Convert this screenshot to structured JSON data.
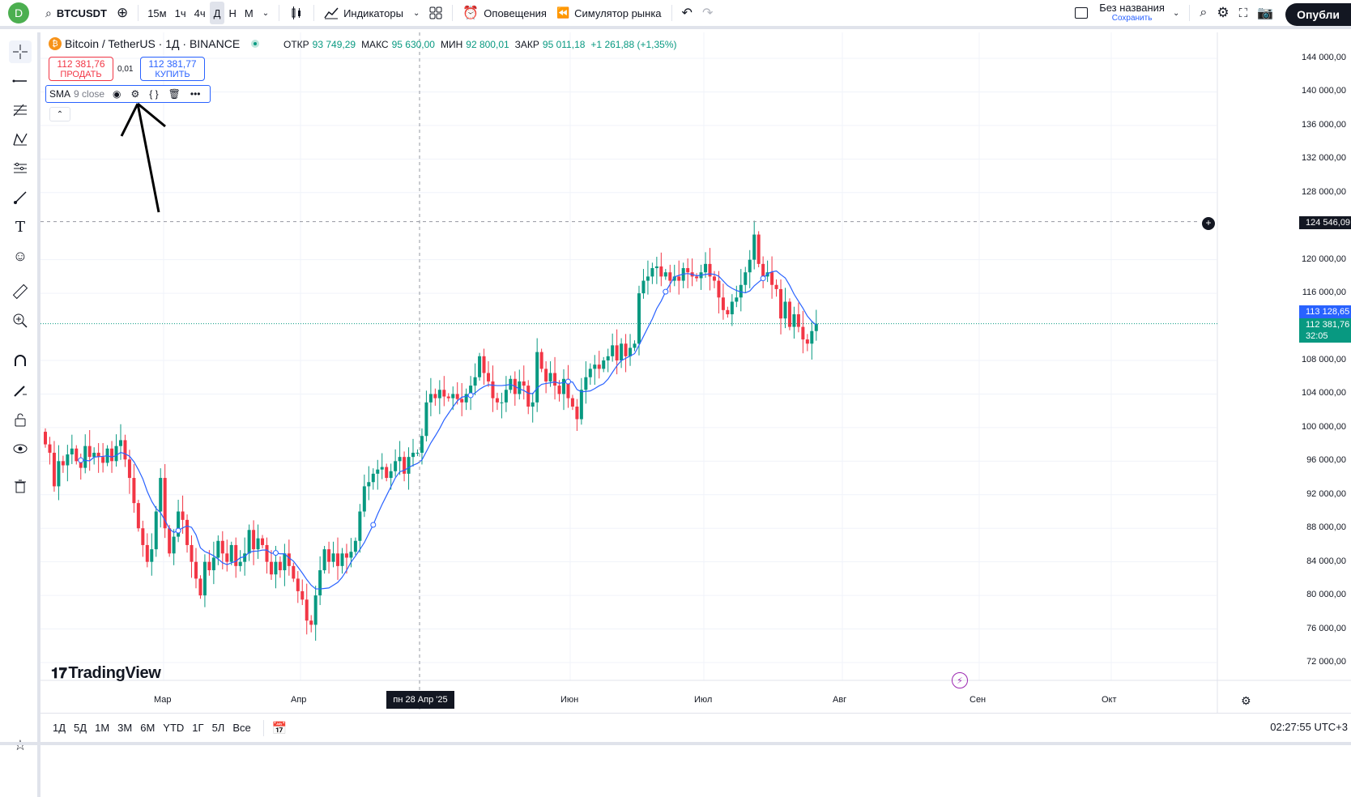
{
  "toolbar": {
    "avatar_letter": "D",
    "symbol": "BTCUSDT",
    "intervals": [
      "15м",
      "1ч",
      "4ч",
      "Д",
      "Н",
      "М"
    ],
    "active_interval": "Д",
    "indicators_label": "Индикаторы",
    "alerts_label": "Оповещения",
    "replay_label": "Симулятор рынка",
    "layout_name": "Без названия",
    "layout_save": "Сохранить",
    "publish_label": "Опубли"
  },
  "legend": {
    "title": "Bitcoin / TetherUS · 1Д · BINANCE",
    "open_label": "ОТКР",
    "open": "93 749,29",
    "high_label": "МАКС",
    "high": "95 630,00",
    "low_label": "МИН",
    "low": "92 800,01",
    "close_label": "ЗАКР",
    "close": "95 011,18",
    "change": "+1 261,88 (+1,35%)"
  },
  "trade": {
    "sell_price": "112 381,76",
    "sell_label": "ПРОДАТЬ",
    "spread": "0,01",
    "buy_price": "112 381,77",
    "buy_label": "КУПИТЬ"
  },
  "indicator": {
    "name": "SMA",
    "params": "9 close"
  },
  "price_axis": {
    "labels": [
      "144 000,00",
      "140 000,00",
      "136 000,00",
      "132 000,00",
      "128 000,00",
      "120 000,00",
      "116 000,00",
      "108 000,00",
      "104 000,00",
      "100 000,00",
      "96 000,00",
      "92 000,00",
      "88 000,00",
      "84 000,00",
      "80 000,00",
      "76 000,00",
      "72 000,00"
    ],
    "crosshair_price": "124 546,09",
    "sma_price": "113 128,65",
    "last_price": "112 381,76",
    "countdown": "32:05"
  },
  "time_axis": {
    "labels": [
      "Мар",
      "Апр",
      "Июн",
      "Июл",
      "Авг",
      "Сен",
      "Окт"
    ],
    "crosshair_date": "пн 28 Апр '25"
  },
  "bottom": {
    "ranges": [
      "1Д",
      "5Д",
      "1М",
      "3М",
      "6М",
      "YTD",
      "1Г",
      "5Л",
      "Все"
    ],
    "clock": "02:27:55 UTC+3"
  },
  "logo_text": "TradingView",
  "colors": {
    "up": "#089981",
    "down": "#f23645",
    "sma": "#2962ff",
    "accent": "#2962ff"
  },
  "chart_data": {
    "type": "candlestick",
    "symbol": "BTCUSDT",
    "interval": "1D",
    "ylim": [
      70000,
      146000
    ],
    "sma_period": 9,
    "closes": [
      98000,
      97000,
      93000,
      96000,
      95500,
      96800,
      97500,
      96000,
      95200,
      97800,
      96500,
      97000,
      96500,
      95800,
      97500,
      96000,
      97800,
      98500,
      96200,
      94000,
      91000,
      88000,
      86000,
      84000,
      85500,
      90000,
      94000,
      88000,
      85000,
      87000,
      90000,
      89000,
      86000,
      84000,
      82000,
      80000,
      84000,
      83000,
      84500,
      86500,
      85000,
      84000,
      86000,
      83500,
      84000,
      85000,
      87800,
      85500,
      86800,
      86000,
      84000,
      82500,
      84000,
      83000,
      85000,
      83500,
      82000,
      80500,
      79500,
      77000,
      76500,
      80000,
      83000,
      85500,
      84000,
      85000,
      83500,
      85000,
      84500,
      85200,
      86500,
      90000,
      93000,
      93500,
      94500,
      95000,
      95300,
      94000,
      94800,
      96000,
      96500,
      94500,
      96500,
      97000,
      97000,
      99000,
      103000,
      104000,
      103500,
      104500,
      103700,
      103500,
      104000,
      103400,
      103000,
      104000,
      105000,
      106000,
      108500,
      106500,
      105500,
      103500,
      103000,
      103000,
      104500,
      105800,
      104000,
      105500,
      105000,
      102500,
      103000,
      109000,
      107000,
      105500,
      106500,
      105000,
      104000,
      105800,
      103500,
      102500,
      101000,
      104500,
      106000,
      107000,
      107500,
      107000,
      108000,
      108500,
      109800,
      108000,
      110000,
      108500,
      109500,
      110000,
      116000,
      117500,
      118000,
      119000,
      119200,
      118000,
      118500,
      117500,
      118000,
      117500,
      119000,
      118500,
      118000,
      117800,
      118500,
      119500,
      118000,
      117500,
      115500,
      114000,
      113500,
      115000,
      115500,
      117000,
      118500,
      120000,
      123000,
      119500,
      118000,
      118500,
      117000,
      116500,
      113000,
      115000,
      112000,
      113500,
      112000,
      110500,
      110000,
      111500,
      112381
    ]
  }
}
